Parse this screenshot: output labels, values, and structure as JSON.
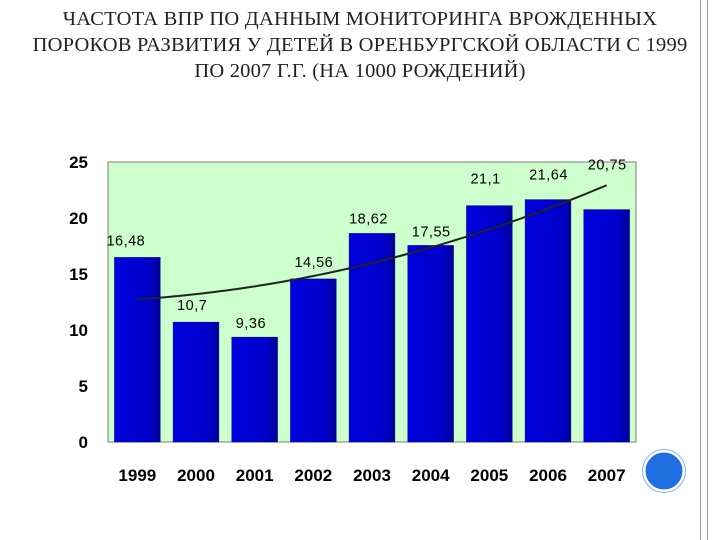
{
  "slide": {
    "title": "ЧАСТОТА ВПР ПО ДАННЫМ МОНИТОРИНГА ВРОЖДЕННЫХ ПОРОКОВ РАЗВИТИЯ У ДЕТЕЙ В ОРЕНБУРГСКОЙ ОБЛАСТИ С 1999 ПО 2007 Г.Г. (НА 1000 РОЖДЕНИЙ)"
  },
  "colors": {
    "plot_background": "#ccffcc",
    "bar_fill": "#0000cc",
    "bar_shade": "#000099",
    "trend_line": "#222222",
    "deco_circle": "#1f6fe0"
  },
  "chart_data": {
    "type": "bar",
    "title": "ЧАСТОТА ВПР ПО ДАННЫМ МОНИТОРИНГА ВРОЖДЕННЫХ ПОРОКОВ РАЗВИТИЯ У ДЕТЕЙ В ОРЕНБУРГСКОЙ ОБЛАСТИ С 1999 ПО 2007 Г.Г. (НА 1000 РОЖДЕНИЙ)",
    "categories": [
      "1999",
      "2000",
      "2001",
      "2002",
      "2003",
      "2004",
      "2005",
      "2006",
      "2007"
    ],
    "values": [
      16.48,
      10.7,
      9.36,
      14.56,
      18.62,
      17.55,
      21.1,
      21.64,
      20.75
    ],
    "data_labels": [
      "16,48",
      "10,7",
      "9,36",
      "14,56",
      "18,62",
      "17,55",
      "21,1",
      "21,64",
      "20,75"
    ],
    "y_ticks": [
      0,
      5,
      10,
      15,
      20,
      25
    ],
    "ylim": [
      0,
      25
    ],
    "xlabel": "",
    "ylabel": "",
    "grid": false,
    "legend": "none",
    "trendline": "polynomial"
  }
}
